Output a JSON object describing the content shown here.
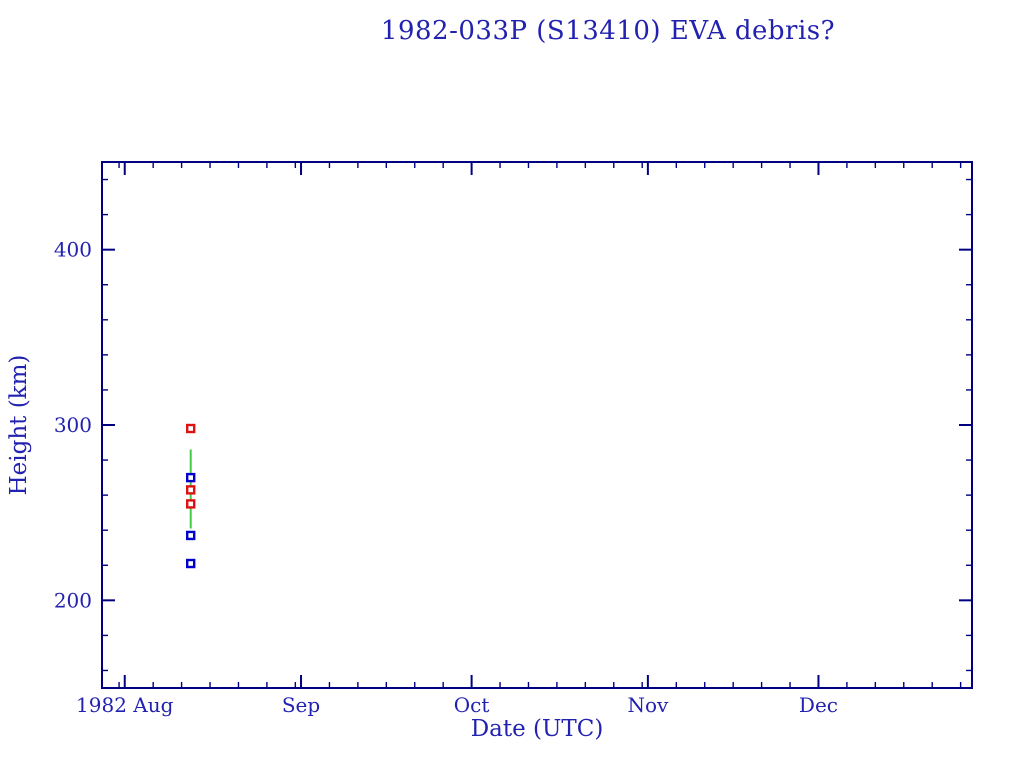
{
  "page": {
    "background": "#ffffff"
  },
  "chart_data": {
    "type": "scatter",
    "title": "1982-033P (S13410) EVA debris?",
    "xlabel": "Date (UTC)",
    "ylabel": "Height (km)",
    "x_domain_days": [
      0,
      153
    ],
    "x_axis_note": "day 0 at left edge; major ticks at month starts",
    "x_major_ticks": [
      {
        "day": 4,
        "label": "1982 Aug"
      },
      {
        "day": 35,
        "label": "Sep"
      },
      {
        "day": 65,
        "label": "Oct"
      },
      {
        "day": 96,
        "label": "Nov"
      },
      {
        "day": 126,
        "label": "Dec"
      }
    ],
    "x_minor_tick_days": [
      3,
      9,
      14,
      19,
      24,
      29,
      34,
      40,
      45,
      50,
      55,
      60,
      70,
      75,
      80,
      85,
      90,
      95,
      101,
      106,
      111,
      116,
      121,
      131,
      136,
      141,
      146,
      151
    ],
    "ylim": [
      150,
      450
    ],
    "y_major_ticks": [
      {
        "value": 200,
        "label": "200"
      },
      {
        "value": 300,
        "label": "300"
      },
      {
        "value": 400,
        "label": "400"
      }
    ],
    "y_minor_tick_values": [
      160,
      180,
      220,
      240,
      260,
      280,
      320,
      340,
      360,
      380,
      420,
      440
    ],
    "grid": false,
    "legend": false,
    "points": [
      {
        "x_day": 15.6,
        "height_km": 298,
        "color": "red",
        "marker": "open-square"
      },
      {
        "x_day": 15.6,
        "height_km": 270,
        "color": "blue",
        "marker": "open-square"
      },
      {
        "x_day": 15.6,
        "height_km": 263,
        "color": "red",
        "marker": "open-square"
      },
      {
        "x_day": 15.6,
        "height_km": 255,
        "color": "red",
        "marker": "open-square"
      },
      {
        "x_day": 15.6,
        "height_km": 237,
        "color": "blue",
        "marker": "open-square"
      },
      {
        "x_day": 15.6,
        "height_km": 221,
        "color": "blue",
        "marker": "open-square"
      }
    ],
    "segments": [
      {
        "x_day": 15.6,
        "from_km": 241,
        "to_km": 286,
        "color": "green"
      }
    ],
    "colors": {
      "frame": "#000080",
      "text": "#2222b0",
      "red": "#dd1111",
      "blue": "#0000cc",
      "green": "#44cc44",
      "marker_fill": "#ffffff"
    }
  }
}
